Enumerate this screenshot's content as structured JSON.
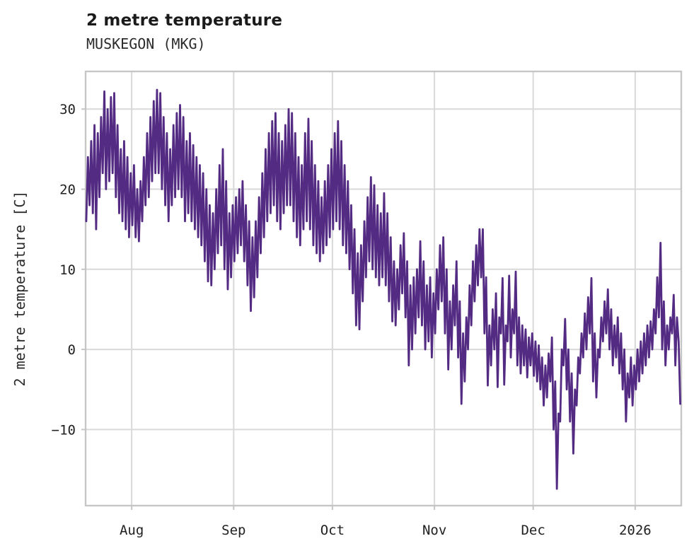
{
  "header": {
    "title": "2 metre temperature",
    "subtitle": "MUSKEGON (MKG)"
  },
  "chart_data": {
    "type": "line",
    "title": "2 metre temperature",
    "subtitle": "MUSKEGON (MKG)",
    "xlabel": "",
    "ylabel": "2 metre temperature [C]",
    "grid": true,
    "legend": "none",
    "line_color": "#542b83",
    "grid_color": "#d9d9d9",
    "border_color": "#c6c6c6",
    "xlim": [
      0,
      181
    ],
    "ylim": [
      -19.5,
      34.7
    ],
    "x_unit": "days from left edge of plot (series spans mid-July 2025 to mid-January 2026, ~2 samples per day)",
    "points_per_day": 2,
    "sample_offsets": [
      0.2,
      0.7
    ],
    "x_ticks": [
      {
        "label": "Aug",
        "day": 14
      },
      {
        "label": "Sep",
        "day": 45
      },
      {
        "label": "Oct",
        "day": 75
      },
      {
        "label": "Nov",
        "day": 106
      },
      {
        "label": "Dec",
        "day": 136
      },
      {
        "label": "2026",
        "day": 167
      }
    ],
    "y_ticks": [
      30,
      20,
      10,
      0,
      -10
    ],
    "y_tick_labels": [
      "30",
      "20",
      "10",
      "0",
      "−10"
    ],
    "values": [
      16,
      24,
      18,
      26,
      17,
      28,
      15,
      27,
      19,
      29,
      22,
      32.2,
      20,
      30,
      21,
      31.5,
      22,
      32,
      19,
      28,
      17,
      25,
      16,
      26,
      15,
      24,
      14,
      22,
      15.5,
      23,
      14,
      20,
      13.5,
      21,
      16,
      24,
      18,
      27,
      19,
      29,
      21,
      31,
      22,
      32.4,
      22,
      32,
      20,
      29,
      18,
      27,
      16,
      25,
      18,
      28,
      19,
      29.5,
      20,
      30.5,
      19,
      29,
      16,
      26,
      17,
      27,
      16,
      25.5,
      15,
      24,
      14,
      23,
      13,
      22,
      11,
      20,
      8.5,
      18,
      8,
      17,
      10,
      20,
      12,
      23,
      13,
      25,
      10,
      21,
      7.5,
      17,
      9,
      18,
      11,
      19,
      12,
      20,
      13,
      21,
      11,
      18,
      8,
      16,
      4.8,
      14,
      6.5,
      16,
      9,
      19,
      12,
      22,
      14,
      25,
      16,
      27,
      17,
      28.5,
      18,
      29.5,
      16,
      27,
      15,
      26,
      17,
      28,
      18,
      30,
      18,
      29.5,
      16,
      27,
      14,
      24,
      13,
      23,
      15,
      27,
      16,
      28.8,
      15,
      26,
      13,
      23,
      12,
      21,
      11,
      19,
      12,
      21,
      13,
      23,
      14,
      25,
      15,
      27,
      16,
      28.5,
      15,
      26,
      13,
      23,
      12,
      21,
      10,
      18,
      7,
      15,
      3,
      12,
      2.5,
      13,
      6,
      16,
      9,
      19,
      11,
      21.5,
      10,
      20.5,
      9,
      18,
      8,
      17,
      9,
      19.5,
      8,
      17,
      6,
      14,
      3.5,
      11,
      3,
      10,
      5,
      13,
      7,
      14.5,
      4,
      11,
      -2,
      8,
      0,
      9,
      2,
      10,
      4,
      13.5,
      3,
      11,
      0,
      8,
      1,
      9,
      -1,
      7,
      2,
      10,
      5,
      13,
      6,
      14,
      2,
      10,
      -2.5,
      6,
      0,
      8,
      3,
      11,
      -1,
      6,
      -6.8,
      2,
      -4,
      4,
      0,
      8,
      3,
      11,
      6,
      13,
      8,
      15,
      9,
      15,
      2,
      9,
      -4.5,
      3,
      -2,
      5,
      0,
      7,
      -4.7,
      4,
      2,
      8.9,
      -4.4,
      3,
      1,
      9.2,
      -1,
      5,
      2,
      9.7,
      -2,
      4,
      -3,
      3,
      -2,
      2.5,
      -3.5,
      1.5,
      -2,
      2,
      -3.3,
      1,
      -4,
      0.5,
      -5,
      -1,
      -7,
      -2,
      -6,
      -0.5,
      -4,
      1.5,
      -10,
      -4,
      -17.4,
      -8,
      -9,
      0,
      -2,
      3.8,
      -5,
      0,
      -9,
      -3,
      -13,
      -5,
      -7,
      -1,
      -3,
      2,
      -1,
      4.5,
      0,
      6.5,
      2,
      8.9,
      -4,
      2,
      -6,
      0,
      -1,
      4,
      1,
      6,
      2,
      7.5,
      0,
      5,
      -2,
      3,
      -1,
      4,
      -3,
      2,
      -5,
      0,
      -9,
      -3,
      -6,
      -1,
      -7,
      -2,
      -5,
      0,
      -4,
      1,
      -3,
      2,
      -2,
      3,
      -1,
      3.5,
      0,
      5,
      2,
      9,
      4,
      13.3,
      0,
      6,
      -2,
      3,
      0,
      4,
      2,
      6.8,
      -2,
      4,
      1,
      -6.8
    ]
  }
}
